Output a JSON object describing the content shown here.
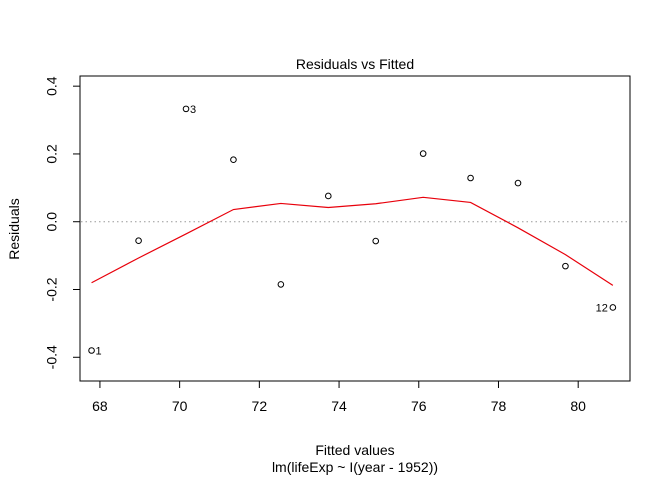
{
  "chart_data": {
    "type": "scatter",
    "title": "Residuals vs Fitted",
    "xlabel": "Fitted values",
    "subtitle": "lm(lifeExp ~ I(year - 1952))",
    "ylabel": "Residuals",
    "xlim": [
      67.5,
      81.3
    ],
    "ylim": [
      -0.47,
      0.43
    ],
    "xticks": [
      68,
      70,
      72,
      74,
      76,
      78,
      80
    ],
    "xtick_labels": [
      "68",
      "70",
      "72",
      "74",
      "76",
      "78",
      "80"
    ],
    "yticks": [
      -0.4,
      -0.2,
      0.0,
      0.2,
      0.4
    ],
    "ytick_labels": [
      "-0.4",
      "-0.2",
      "0.0",
      "0.2",
      "0.4"
    ],
    "points": [
      {
        "x": 67.79,
        "y": -0.38,
        "label": "1"
      },
      {
        "x": 68.97,
        "y": -0.056,
        "label": ""
      },
      {
        "x": 70.16,
        "y": 0.333,
        "label": "3"
      },
      {
        "x": 71.35,
        "y": 0.183,
        "label": ""
      },
      {
        "x": 72.54,
        "y": -0.185,
        "label": ""
      },
      {
        "x": 73.73,
        "y": 0.076,
        "label": ""
      },
      {
        "x": 74.92,
        "y": -0.057,
        "label": ""
      },
      {
        "x": 76.11,
        "y": 0.201,
        "label": ""
      },
      {
        "x": 77.3,
        "y": 0.129,
        "label": ""
      },
      {
        "x": 78.49,
        "y": 0.114,
        "label": ""
      },
      {
        "x": 79.68,
        "y": -0.131,
        "label": ""
      },
      {
        "x": 80.87,
        "y": -0.253,
        "label": "12"
      }
    ],
    "smooth": {
      "x": [
        67.79,
        68.97,
        70.16,
        71.35,
        72.54,
        73.73,
        74.92,
        76.11,
        77.3,
        78.49,
        79.68,
        80.87
      ],
      "y": [
        -0.18,
        -0.107,
        -0.036,
        0.036,
        0.054,
        0.042,
        0.053,
        0.072,
        0.057,
        -0.018,
        -0.097,
        -0.188
      ]
    },
    "zero_line": 0,
    "colors": {
      "smooth": "#e8000b",
      "zero_line": "#999999",
      "points": "#000000"
    }
  }
}
